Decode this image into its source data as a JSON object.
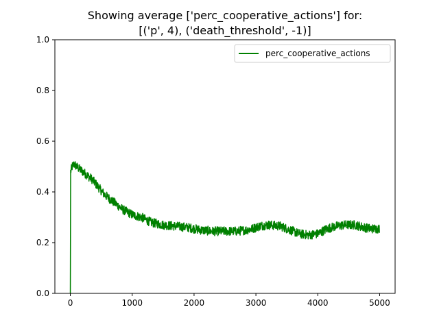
{
  "chart_data": {
    "type": "line",
    "title_line1": "Showing average ['perc_cooperative_actions'] for:",
    "title_line2": "[('p', 4), ('death_threshold', -1)]",
    "xlabel": "",
    "ylabel": "",
    "xlim": [
      -250,
      5250
    ],
    "ylim": [
      0,
      1
    ],
    "x_ticks": [
      0,
      1000,
      2000,
      3000,
      4000,
      5000
    ],
    "x_tick_labels": [
      "0",
      "1000",
      "2000",
      "3000",
      "4000",
      "5000"
    ],
    "y_ticks": [
      0,
      0.2,
      0.4,
      0.6,
      0.8,
      1
    ],
    "y_tick_labels": [
      "0.0",
      "0.2",
      "0.4",
      "0.6",
      "0.8",
      "1.0"
    ],
    "grid": false,
    "legend_position": "top-right",
    "series": [
      {
        "name": "perc_cooperative_actions",
        "color": "#008000",
        "noise_amplitude": 0.018,
        "points": [
          [
            0,
            0.0
          ],
          [
            5,
            0.48
          ],
          [
            30,
            0.5
          ],
          [
            60,
            0.51
          ],
          [
            100,
            0.5
          ],
          [
            150,
            0.49
          ],
          [
            250,
            0.47
          ],
          [
            350,
            0.45
          ],
          [
            450,
            0.42
          ],
          [
            550,
            0.39
          ],
          [
            650,
            0.37
          ],
          [
            750,
            0.35
          ],
          [
            850,
            0.33
          ],
          [
            1000,
            0.31
          ],
          [
            1150,
            0.3
          ],
          [
            1300,
            0.28
          ],
          [
            1500,
            0.27
          ],
          [
            1700,
            0.265
          ],
          [
            1900,
            0.26
          ],
          [
            2100,
            0.25
          ],
          [
            2300,
            0.245
          ],
          [
            2500,
            0.245
          ],
          [
            2700,
            0.245
          ],
          [
            2850,
            0.25
          ],
          [
            2950,
            0.255
          ],
          [
            3050,
            0.265
          ],
          [
            3200,
            0.27
          ],
          [
            3400,
            0.265
          ],
          [
            3550,
            0.25
          ],
          [
            3700,
            0.235
          ],
          [
            3850,
            0.23
          ],
          [
            4000,
            0.235
          ],
          [
            4150,
            0.255
          ],
          [
            4300,
            0.265
          ],
          [
            4450,
            0.27
          ],
          [
            4600,
            0.27
          ],
          [
            4750,
            0.26
          ],
          [
            4850,
            0.255
          ],
          [
            5000,
            0.255
          ]
        ]
      }
    ]
  }
}
